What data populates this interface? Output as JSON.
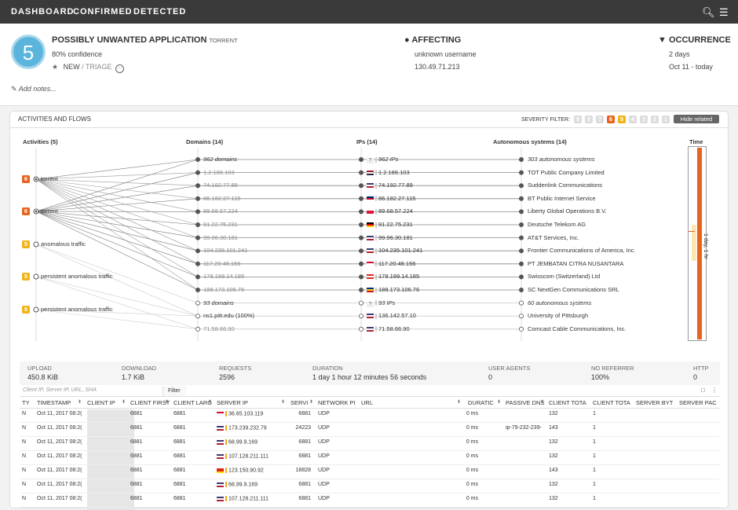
{
  "nav": {
    "dashboard": "DASHBOARD",
    "confirmed": "CONFIRMED",
    "detected": "DETECTED"
  },
  "alert": {
    "score": "5",
    "title": "POSSIBLY UNWANTED APPLICATION",
    "tag": "TORRENT",
    "confidence": "80% confidence",
    "status_new": "NEW",
    "status_sep": " / ",
    "status_triage": "TRIAGE",
    "add_notes": "Add notes..."
  },
  "affecting": {
    "title": "AFFECTING",
    "user": "unknown username",
    "ip": "130.49.71.213"
  },
  "occurrence": {
    "title": "OCCURRENCE",
    "duration": "2 days",
    "range": "Oct 11 - today"
  },
  "panel": {
    "title": "ACTIVITIES AND FLOWS",
    "severity_label": "SEVERITY FILTER:",
    "severity_levels": [
      "9",
      "8",
      "7",
      "6",
      "5",
      "4",
      "3",
      "2",
      "1"
    ],
    "hide_related": "Hide related",
    "columns": {
      "activities": "Activities (5)",
      "domains": "Domains (14)",
      "ips": "IPs (14)",
      "as": "Autonomous systems (14)",
      "time": "Time"
    },
    "time_label": "1 day, 1 hr"
  },
  "activities": [
    {
      "sev": "6",
      "label": "torrent",
      "color": "#e8641e"
    },
    {
      "sev": "6",
      "label": "torrent",
      "color": "#e8641e"
    },
    {
      "sev": "5",
      "label": "anomalous traffic",
      "color": "#f0b418"
    },
    {
      "sev": "5",
      "label": "persistent anomalous traffic",
      "color": "#f0b418"
    },
    {
      "sev": "5",
      "label": "persistent anomalous traffic",
      "color": "#f0b418"
    }
  ],
  "domains": [
    "962 domains",
    "1.2.186.103",
    "74.192.77.89",
    "86.182.27.115",
    "89.68.57.224",
    "91.22.75.231",
    "99.96.30.181",
    "104.235.101.241",
    "117.20.48.156",
    "178.199.14.185",
    "188.173.106.76",
    "93 domains",
    "ns1.pitt.edu (100%)",
    "71.58.66.90"
  ],
  "ips": [
    "962 IPs",
    "1.2.186.103",
    "74.192.77.89",
    "86.182.27.115",
    "89.68.57.224",
    "91.22.75.231",
    "99.96.30.181",
    "104.235.101.241",
    "117.20.48.156",
    "178.199.14.185",
    "188.173.106.76",
    "93 IPs",
    "136.142.57.10",
    "71.58.66.90"
  ],
  "ip_badges": {
    "first": "?",
    "twelfth": "?"
  },
  "as_list": [
    "303 autonomous systems",
    "TOT Public Company Limited",
    "Suddenlink Communications",
    "BT Public Internet Service",
    "Liberty Global Operations B.V.",
    "Deutsche Telekom AG",
    "AT&T Services, Inc.",
    "Frontier Communications of America, Inc.",
    "PT JEMBATAN CITRA NUSANTARA",
    "Swisscom (Switzerland) Ltd",
    "SC NextGen Communications SRL",
    "60 autonomous systems",
    "University of Pittsburgh",
    "Comcast Cable Communications, Inc."
  ],
  "stats": [
    {
      "label": "UPLOAD",
      "value": "450.8 KiB"
    },
    {
      "label": "DOWNLOAD",
      "value": "1.7 KiB"
    },
    {
      "label": "REQUESTS",
      "value": "2596"
    },
    {
      "label": "DURATION",
      "value": "1 day 1 hour 12 minutes 56 seconds"
    },
    {
      "label": "USER AGENTS",
      "value": "0"
    },
    {
      "label": "NO REFERRER",
      "value": "100%"
    },
    {
      "label": "HTTP",
      "value": "0"
    }
  ],
  "filter": {
    "placeholder": "Client IP, Server IP, URL, SHA",
    "button": "Filter"
  },
  "table": {
    "headers": [
      "TY",
      "TIMESTAMP",
      "CLIENT IP",
      "CLIENT FIRST",
      "CLIENT LARG",
      "SERVER IP",
      "SERVI",
      "NETWORK PI",
      "URL",
      "DURATIC",
      "PASSIVE DNS",
      "CLIENT TOTA",
      "CLIENT TOTA",
      "SERVER BYT",
      "SERVER PAC"
    ],
    "rows": [
      {
        "ty": "N",
        "ts": "Oct 11, 2017 08:2(",
        "cf": "6881",
        "cl": "6881",
        "sip": "36.85.103.119",
        "flag": "id",
        "sp": "6881",
        "np": "UDP",
        "dur": "0 ms",
        "dns": "",
        "ct": "132",
        "ct2": "1"
      },
      {
        "ty": "N",
        "ts": "Oct 11, 2017 08:2(",
        "cf": "6881",
        "cl": "6881",
        "sip": "173.239.232.79",
        "flag": "us",
        "sp": "24223",
        "np": "UDP",
        "dur": "0 ms",
        "dns": "ip-79-232-239-",
        "ct": "143",
        "ct2": "1"
      },
      {
        "ty": "N",
        "ts": "Oct 11, 2017 08:2(",
        "cf": "6881",
        "cl": "6881",
        "sip": "68.99.9.169",
        "flag": "us",
        "sp": "6881",
        "np": "UDP",
        "dur": "0 ms",
        "dns": "",
        "ct": "132",
        "ct2": "1"
      },
      {
        "ty": "N",
        "ts": "Oct 11, 2017 08:2(",
        "cf": "6881",
        "cl": "6881",
        "sip": "107.128.211.111",
        "flag": "us",
        "sp": "6881",
        "np": "UDP",
        "dur": "0 ms",
        "dns": "",
        "ct": "132",
        "ct2": "1"
      },
      {
        "ty": "N",
        "ts": "Oct 11, 2017 08:2(",
        "cf": "6881",
        "cl": "6881",
        "sip": "123.150.90.92",
        "flag": "cn",
        "sp": "18828",
        "np": "UDP",
        "dur": "0 ms",
        "dns": "",
        "ct": "143",
        "ct2": "1"
      },
      {
        "ty": "N",
        "ts": "Oct 11, 2017 08:2(",
        "cf": "6881",
        "cl": "6881",
        "sip": "68.99.9.169",
        "flag": "us",
        "sp": "6881",
        "np": "UDP",
        "dur": "0 ms",
        "dns": "",
        "ct": "132",
        "ct2": "1"
      },
      {
        "ty": "N",
        "ts": "Oct 11, 2017 08:2(",
        "cf": "6881",
        "cl": "6881",
        "sip": "107.128.211.111",
        "flag": "us",
        "sp": "6881",
        "np": "UDP",
        "dur": "0 ms",
        "dns": "",
        "ct": "132",
        "ct2": "1"
      }
    ]
  },
  "flags": [
    "",
    "th",
    "us",
    "gb",
    "pl",
    "de",
    "us",
    "us",
    "id",
    "ch",
    "ro",
    "",
    "us",
    "us"
  ]
}
